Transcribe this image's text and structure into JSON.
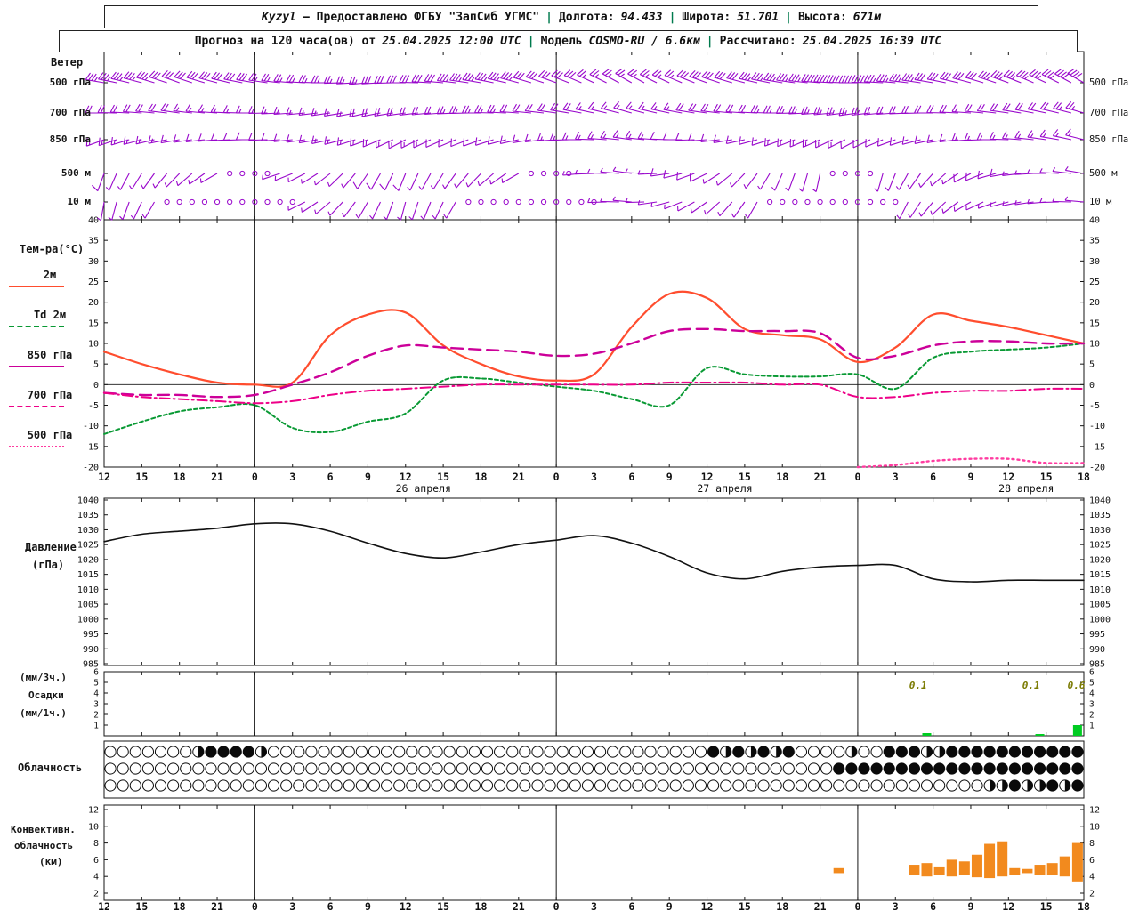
{
  "colors": {
    "wind": "#9908cc",
    "t2m": "#ff4d2e",
    "td2m": "#089933",
    "t850": "#cc0099",
    "t700": "#ee0088",
    "t500": "#ff3ba0",
    "pressure": "#111111",
    "precip_bar": "#00cc22",
    "precip_text": "#7a7a00",
    "convective": "#f28a1e",
    "separator": "#007a4d",
    "axis": "#151515"
  },
  "header1": {
    "station": "Kyzyl",
    "provided": "– Предоставлено ФГБУ \"ЗапСиб УГМС\"",
    "sep": "|",
    "lon_label": "Долгота:",
    "lon": "94.433",
    "lat_label": "Широта:",
    "lat": "51.701",
    "alt_label": "Высота:",
    "alt": "671м"
  },
  "header2": {
    "forecast": "Прогноз на 120 часа(ов) от",
    "run": "25.04.2025 12:00 UTC",
    "sep": "|",
    "model_label": "Модель",
    "model": "COSMO-RU / 6.6км",
    "calc_label": "Рассчитано:",
    "calc": "25.04.2025 16:39 UTC"
  },
  "labels": {
    "wind": "Ветер",
    "wind_levels": [
      "500 гПа",
      "700 гПа",
      "850 гПа",
      "500 м",
      "10 м"
    ],
    "temp_title": "Тем-ра(°C)",
    "legend": [
      {
        "label": "2м",
        "key": "t2m"
      },
      {
        "label": "Td 2м",
        "key": "td2m"
      },
      {
        "label": "850 гПа",
        "key": "t850"
      },
      {
        "label": "700 гПа",
        "key": "t700"
      },
      {
        "label": "500 гПа",
        "key": "t500"
      }
    ],
    "pressure": [
      "Давление",
      "(гПа)"
    ],
    "precip": [
      "(мм/3ч.)",
      "Осадки",
      "(мм/1ч.)"
    ],
    "cloud": "Облачность",
    "convective": [
      "Конвективн.",
      "облачность",
      "(км)"
    ]
  },
  "chart_data": {
    "type": "meteogram",
    "x_hours": [
      "12",
      "15",
      "18",
      "21",
      "0",
      "3",
      "6",
      "9",
      "12",
      "15",
      "18",
      "21",
      "0",
      "3",
      "6",
      "9",
      "12",
      "15",
      "18",
      "21",
      "0",
      "3",
      "6",
      "9",
      "12",
      "15",
      "18"
    ],
    "dates": [
      {
        "label": "26 апреля",
        "tick": 8
      },
      {
        "label": "27 апреля",
        "tick": 16
      },
      {
        "label": "28 апреля",
        "tick": 24
      }
    ],
    "day_boundary_ticks": [
      4,
      12,
      20
    ],
    "wind": {
      "levels": [
        {
          "key": "w500",
          "name": "500 гПа",
          "dir": [
            280,
            285,
            290,
            285,
            280,
            275,
            270,
            265,
            270,
            275,
            280,
            285,
            290,
            295,
            300,
            295,
            290,
            285,
            280,
            275,
            270,
            275,
            280,
            285,
            290,
            295,
            300
          ],
          "spd": [
            35,
            35,
            30,
            30,
            28,
            25,
            25,
            27,
            30,
            32,
            35,
            33,
            30,
            27,
            25,
            26,
            30,
            32,
            35,
            38,
            40,
            36,
            32,
            30,
            34,
            36,
            40
          ]
        },
        {
          "key": "w700",
          "name": "700 гПа",
          "dir": [
            270,
            274,
            278,
            274,
            270,
            266,
            262,
            258,
            262,
            266,
            270,
            274,
            278,
            282,
            286,
            282,
            278,
            274,
            270,
            266,
            262,
            266,
            270,
            274,
            278,
            282,
            286
          ],
          "spd": [
            20,
            20,
            18,
            16,
            15,
            15,
            16,
            18,
            20,
            22,
            24,
            22,
            20,
            17,
            15,
            16,
            19,
            21,
            24,
            25,
            24,
            21,
            19,
            17,
            19,
            21,
            24
          ]
        },
        {
          "key": "w850",
          "name": "850 гПа",
          "dir": [
            250,
            255,
            260,
            265,
            270,
            264,
            258,
            250,
            242,
            246,
            250,
            258,
            266,
            272,
            278,
            272,
            266,
            258,
            250,
            246,
            242,
            250,
            258,
            266,
            272,
            278,
            284
          ],
          "spd": [
            15,
            14,
            12,
            10,
            10,
            11,
            13,
            15,
            14,
            12,
            10,
            11,
            13,
            15,
            14,
            12,
            10,
            11,
            13,
            15,
            12,
            10,
            11,
            13,
            15,
            15,
            16
          ]
        },
        {
          "key": "w500m",
          "name": "500 м",
          "dir": [
            200,
            212,
            224,
            240,
            258,
            248,
            232,
            214,
            202,
            212,
            224,
            240,
            258,
            268,
            278,
            262,
            244,
            224,
            204,
            192,
            184,
            202,
            222,
            242,
            260,
            270,
            280
          ],
          "spd": [
            8,
            6,
            5,
            3,
            1,
            4,
            6,
            8,
            8,
            6,
            5,
            3,
            1,
            4,
            6,
            8,
            8,
            6,
            5,
            3,
            1,
            4,
            6,
            8,
            8,
            6,
            5
          ]
        },
        {
          "key": "w10m",
          "name": "10 м",
          "dir": [
            190,
            205,
            220,
            240,
            260,
            250,
            230,
            210,
            195,
            205,
            220,
            240,
            260,
            265,
            275,
            255,
            235,
            215,
            200,
            190,
            180,
            200,
            220,
            240,
            255,
            265,
            275
          ],
          "spd": [
            4,
            3,
            2,
            1,
            1,
            2,
            5,
            6,
            4,
            3,
            2,
            1,
            1,
            2,
            5,
            6,
            4,
            3,
            2,
            1,
            1,
            2,
            5,
            6,
            5,
            4,
            3
          ]
        }
      ]
    },
    "temp": {
      "ylim": [
        -20,
        40
      ],
      "ticks": [
        40,
        35,
        30,
        25,
        20,
        15,
        10,
        5,
        0,
        -5,
        -10,
        -15,
        -20
      ],
      "series": [
        {
          "key": "t2m",
          "name": "2м",
          "values": [
            8,
            5,
            2.5,
            0.5,
            0,
            0.5,
            12,
            17,
            17.5,
            9.5,
            5,
            2,
            1,
            2.5,
            14,
            22,
            21,
            13.5,
            12,
            11,
            5.5,
            9,
            17,
            15.5,
            14,
            12,
            10
          ]
        },
        {
          "key": "td2m",
          "name": "Td 2м",
          "values": [
            -12,
            -9,
            -6.5,
            -5.5,
            -5,
            -10.5,
            -11.5,
            -9,
            -7,
            1,
            1.5,
            0.5,
            -0.5,
            -1.5,
            -3.5,
            -5,
            4,
            2.5,
            2,
            2,
            2.5,
            -1,
            6.5,
            8,
            8.5,
            9,
            10
          ]
        },
        {
          "key": "t850",
          "name": "850 гПа",
          "values": [
            -2,
            -2.5,
            -2.5,
            -3,
            -2.5,
            0,
            3,
            7,
            9.5,
            9,
            8.5,
            8,
            7,
            7.5,
            10,
            13,
            13.5,
            13,
            13,
            12.5,
            6.5,
            7,
            9.5,
            10.5,
            10.5,
            10,
            10
          ]
        },
        {
          "key": "t700",
          "name": "700 гПа",
          "values": [
            -2,
            -3,
            -3.5,
            -4,
            -4.5,
            -4,
            -2.5,
            -1.5,
            -1,
            -0.5,
            0,
            0,
            0,
            0,
            0,
            0.5,
            0.5,
            0.5,
            0,
            0,
            -3,
            -3,
            -2,
            -1.5,
            -1.5,
            -1,
            -1
          ]
        },
        {
          "key": "t500",
          "name": "500 гПа",
          "values": [
            null,
            null,
            null,
            null,
            null,
            null,
            null,
            null,
            null,
            null,
            null,
            null,
            null,
            null,
            null,
            null,
            null,
            null,
            null,
            null,
            -20,
            -19.5,
            -18.5,
            -18,
            -18,
            -19,
            -19
          ]
        }
      ]
    },
    "pressure": {
      "ylim": [
        985,
        1040
      ],
      "ticks": [
        1040,
        1035,
        1030,
        1025,
        1020,
        1015,
        1010,
        1005,
        1000,
        995,
        990,
        985
      ],
      "values": [
        1026,
        1028.5,
        1029.5,
        1030.5,
        1032,
        1032,
        1029.5,
        1025.5,
        1022,
        1020.5,
        1022.5,
        1025,
        1026.5,
        1028,
        1025.5,
        1021,
        1015.5,
        1013.5,
        1016,
        1017.5,
        1018,
        1018,
        1013.5,
        1012.5,
        1013,
        1013,
        1013
      ]
    },
    "precip": {
      "ylim": [
        0,
        6
      ],
      "ticks": [
        6,
        5,
        4,
        3,
        2,
        1
      ],
      "labels": [
        [
          21.6,
          "0.1"
        ],
        [
          24.6,
          "0.1"
        ],
        [
          25.8,
          "0.6"
        ]
      ],
      "bars": [
        [
          65,
          0.25
        ],
        [
          74,
          0.12
        ],
        [
          77,
          1.0
        ]
      ]
    },
    "cloud": {
      "rows": [
        "000000048888400000000000000000000000000000000000848484800004008884488888888888",
        "000000000000000000000000000000000000000000000000000000000088888888888888888888",
        "000000000000000000000000000000000000000000000000000000000000000000000044844848"
      ]
    },
    "convective": {
      "ylim": [
        2,
        12
      ],
      "ticks": [
        12,
        10,
        8,
        6,
        4,
        2
      ],
      "bars": [
        [
          58,
          4.4,
          5.0
        ],
        [
          64,
          4.2,
          5.4
        ],
        [
          65,
          4.0,
          5.6
        ],
        [
          66,
          4.2,
          5.2
        ],
        [
          67,
          4.0,
          6.0
        ],
        [
          68,
          4.2,
          5.8
        ],
        [
          69,
          3.9,
          6.6
        ],
        [
          70,
          3.8,
          7.9
        ],
        [
          71,
          4.0,
          8.2
        ],
        [
          72,
          4.2,
          5.0
        ],
        [
          73,
          4.4,
          4.9
        ],
        [
          74,
          4.2,
          5.4
        ],
        [
          75,
          4.2,
          5.6
        ],
        [
          76,
          4.0,
          6.4
        ],
        [
          77,
          3.4,
          8.0
        ]
      ]
    }
  }
}
